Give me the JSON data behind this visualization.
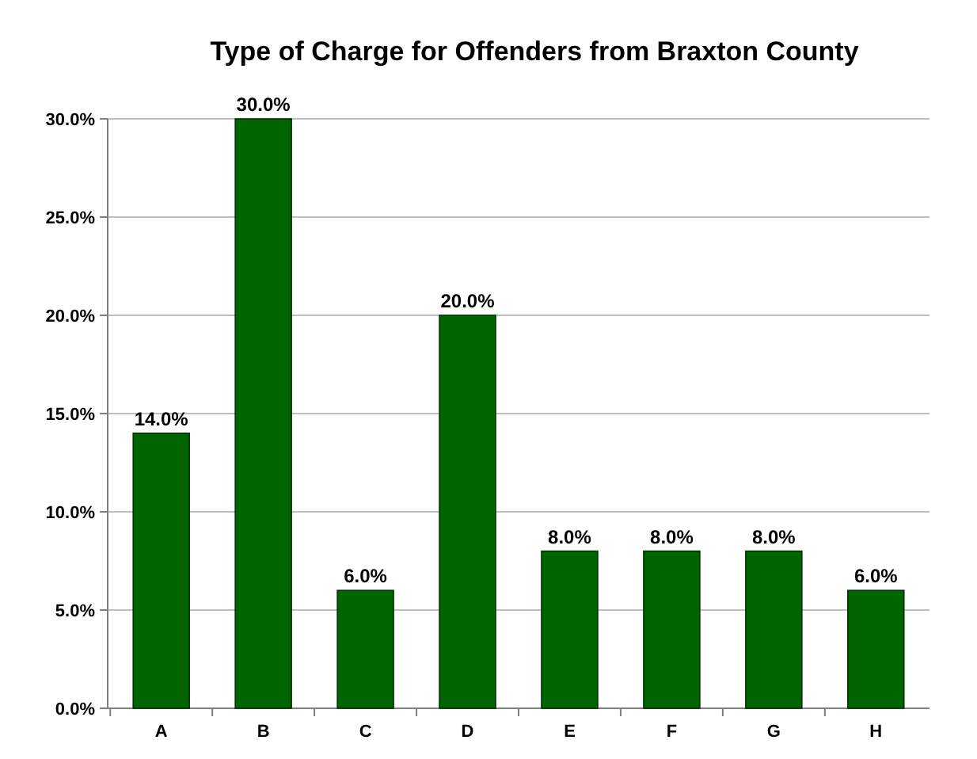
{
  "chart_data": {
    "type": "bar",
    "title": "Type of Charge for Offenders from Braxton County",
    "categories": [
      "A",
      "B",
      "C",
      "D",
      "E",
      "F",
      "G",
      "H"
    ],
    "values": [
      14,
      30,
      6,
      20,
      8,
      8,
      8,
      6
    ],
    "value_labels": [
      "14.0%",
      "30.0%",
      "6.0%",
      "20.0%",
      "8.0%",
      "8.0%",
      "8.0%",
      "6.0%"
    ],
    "color": "#006400",
    "ylim": [
      0,
      30
    ],
    "yticks": [
      {
        "value": 0,
        "label": "0.0%"
      },
      {
        "value": 5,
        "label": "5.0%"
      },
      {
        "value": 10,
        "label": "10.0%"
      },
      {
        "value": 15,
        "label": "15.0%"
      },
      {
        "value": 20,
        "label": "20.0%"
      },
      {
        "value": 25,
        "label": "25.0%"
      },
      {
        "value": 30,
        "label": "30.0%"
      }
    ],
    "grid": "y"
  }
}
